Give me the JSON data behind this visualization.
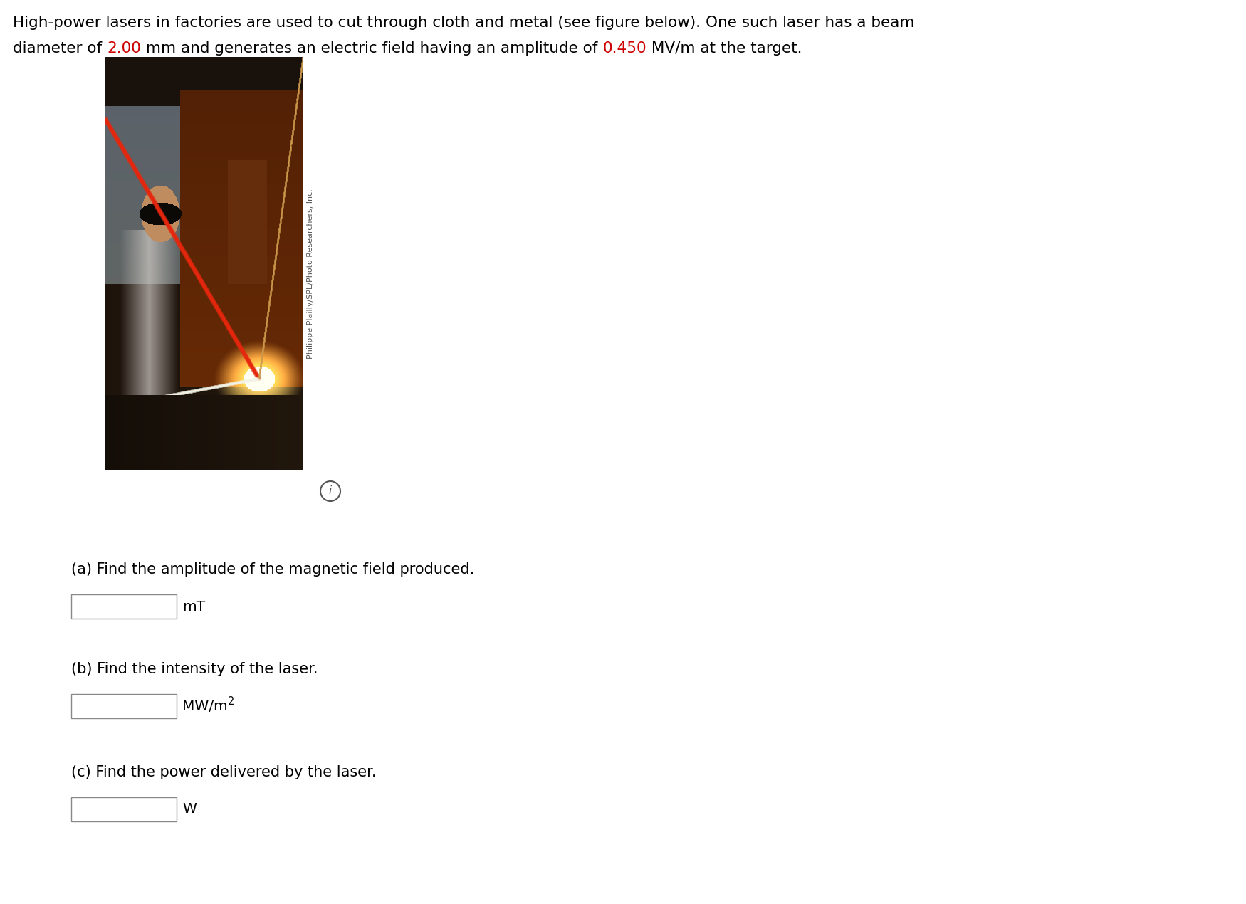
{
  "bg_color": "#ffffff",
  "text_color": "#000000",
  "highlight_color": "#cc0000",
  "header_line1": "High-power lasers in factories are used to cut through cloth and metal (see figure below). One such laser has a beam",
  "header_line2_seg1": "diameter of ",
  "header_line2_red1": "2.00",
  "header_line2_seg2": " mm and generates an electric field having an amplitude of ",
  "header_line2_red2": "0.450",
  "header_line2_seg3": " MV/m at the target.",
  "caption": "Philippe Plailly/SPL/Photo Researchers, Inc.",
  "info_symbol": "i",
  "qa_label": "(a) Find the amplitude of the magnetic field produced.",
  "qa_unit": "mT",
  "qb_label": "(b) Find the intensity of the laser.",
  "qb_unit1": "MW/m",
  "qb_unit2": "2",
  "qc_label": "(c) Find the power delivered by the laser.",
  "qc_unit": "W",
  "font_size_header": 15.5,
  "font_size_question": 15,
  "font_size_unit": 14.5,
  "font_size_caption": 8.0
}
